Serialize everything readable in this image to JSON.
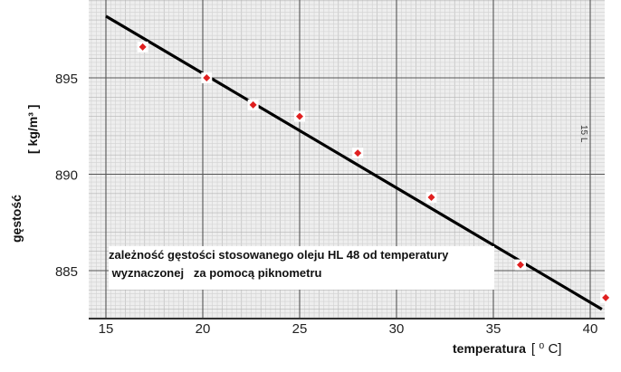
{
  "chart_data": {
    "type": "scatter",
    "title": "",
    "annotation_line1": "zależność gęstości stosowanego oleju HL 48 od temperatury",
    "annotation_line2": " wyznaczonej   za pomocą piknometru",
    "xlabel": "temperatura",
    "xunit": "[ ⁰ C]",
    "ylabel_text": "gęstość",
    "ylabel_unit": "[ kg/m³ ]",
    "xlim": [
      14,
      40.3
    ],
    "ylim": [
      882.2,
      899
    ],
    "x_ticks": [
      15,
      20,
      25,
      30,
      35,
      40
    ],
    "y_ticks": [
      885,
      890,
      895
    ],
    "grid": true,
    "series": [
      {
        "points": [
          {
            "x": 16.9,
            "y": 896.6
          },
          {
            "x": 20.2,
            "y": 895.0
          },
          {
            "x": 22.6,
            "y": 893.6
          },
          {
            "x": 25.0,
            "y": 893.0
          },
          {
            "x": 28.0,
            "y": 891.1
          },
          {
            "x": 31.8,
            "y": 888.8
          },
          {
            "x": 36.4,
            "y": 885.3
          },
          {
            "x": 40.8,
            "y": 883.6
          }
        ],
        "color": "#e02020"
      }
    ],
    "trend_line": {
      "x": [
        15.0,
        40.6
      ],
      "y": [
        898.2,
        883.0
      ],
      "color": "#000000"
    },
    "side_mark": "15 L"
  }
}
